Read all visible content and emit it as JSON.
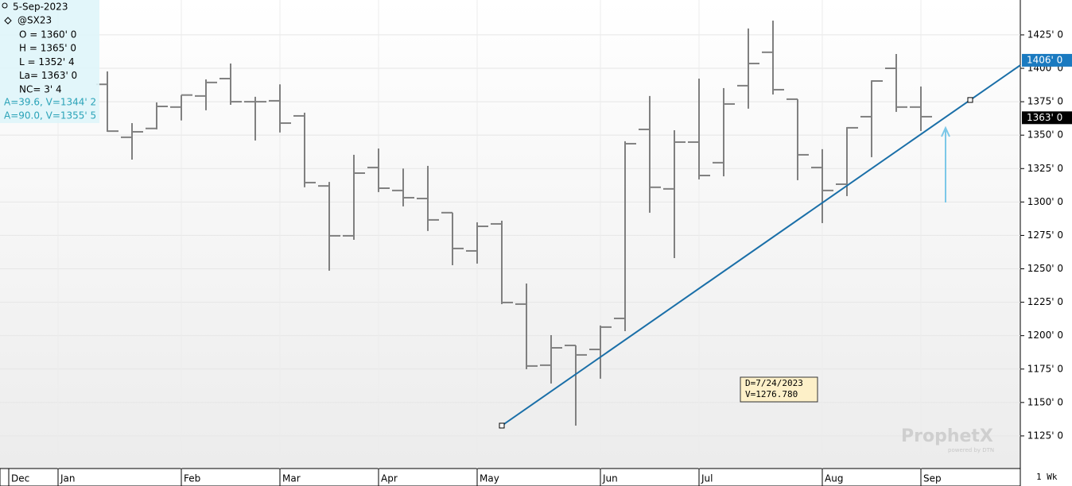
{
  "chart_data": {
    "type": "ohlc",
    "symbol": "@SX23",
    "date": "5-Sep-2023",
    "info": [
      "O = 1360' 0",
      "H = 1365' 0",
      "L = 1352' 4",
      "La= 1363' 0",
      "NC= 3' 4"
    ],
    "cursor_info": [
      "A=39.6, V=1344' 2",
      "A=90.0, V=1355' 5"
    ],
    "interval": "1 Wk",
    "watermark": "ProphetX",
    "watermark_sub": "powered by DTN",
    "categories": [
      "Dec",
      null,
      "Jan",
      null,
      null,
      null,
      null,
      "Feb",
      null,
      null,
      null,
      "Mar",
      null,
      null,
      null,
      "Apr",
      null,
      null,
      null,
      "May",
      null,
      null,
      null,
      null,
      "Jun",
      null,
      null,
      null,
      "Jul",
      null,
      null,
      null,
      null,
      "Aug",
      null,
      null,
      null,
      "Sep",
      null,
      null,
      null
    ],
    "series": [
      {
        "name": "open",
        "values": [
          null,
          null,
          null,
          null,
          1388,
          1348.4,
          1355,
          1371,
          1379.3,
          1392.3,
          1375,
          1375.7,
          1364.4,
          1312,
          1274.7,
          1325.8,
          1308.6,
          1302.6,
          1292,
          1263.4,
          1283.6,
          1223.6,
          1177.9,
          1192.7,
          1189.7,
          1212.9,
          1354.3,
          1309.8,
          1344.8,
          1329.4,
          1387,
          1412,
          1376.9,
          1325.8,
          1313.3,
          1363.8,
          1400,
          1371,
          null,
          null,
          null
        ]
      },
      {
        "name": "high",
        "values": [
          null,
          null,
          null,
          null,
          1397.7,
          1359,
          1374.5,
          1380,
          1391.7,
          1403.6,
          1378.7,
          1388,
          1366.8,
          1315,
          1335.3,
          1340,
          1325,
          1327,
          1292,
          1284.8,
          1286,
          1239,
          1200.4,
          1192.7,
          1207.6,
          1345.4,
          1379.3,
          1353.7,
          1392.3,
          1385.2,
          1429.8,
          1435.7,
          1376.9,
          1339.5,
          1356,
          1391,
          1410.7,
          1386.4,
          null,
          null,
          null
        ]
      },
      {
        "name": "low",
        "values": [
          null,
          null,
          null,
          null,
          1352.5,
          1331.7,
          1354.3,
          1361,
          1368.6,
          1372.7,
          1346,
          1352,
          1311,
          1248.6,
          1271.7,
          1307.4,
          1296.7,
          1278.3,
          1252.7,
          1253.9,
          1223.6,
          1174.9,
          1164.2,
          1132.7,
          1167.8,
          1203.4,
          1292,
          1258,
          1316.9,
          1319.2,
          1369.8,
          1380.4,
          1316.3,
          1284.2,
          1304.4,
          1333.5,
          1367.4,
          1353.1,
          null,
          null,
          null
        ]
      },
      {
        "name": "close",
        "values": [
          null,
          null,
          null,
          null,
          1353,
          1352.5,
          1371.5,
          1380,
          1389.4,
          1375,
          1375,
          1359,
          1314.5,
          1274.7,
          1321.6,
          1310.3,
          1303.2,
          1286.6,
          1265.2,
          1281.8,
          1224.8,
          1177.3,
          1190.9,
          1185.6,
          1206.4,
          1343.6,
          1311,
          1344.8,
          1319.8,
          1373.3,
          1403.6,
          1384,
          1335.3,
          1308.6,
          1355.5,
          1390.5,
          1371,
          1363.8,
          null,
          null,
          null
        ]
      }
    ],
    "color": "#808080",
    "ylim": [
      1100.6,
      1451.1
    ],
    "yticks": [
      {
        "value": 1125,
        "label": "1125' 0"
      },
      {
        "value": 1150,
        "label": "1150' 0"
      },
      {
        "value": 1175,
        "label": "1175' 0"
      },
      {
        "value": 1200,
        "label": "1200' 0"
      },
      {
        "value": 1225,
        "label": "1225' 0"
      },
      {
        "value": 1250,
        "label": "1250' 0"
      },
      {
        "value": 1275,
        "label": "1275' 0"
      },
      {
        "value": 1300,
        "label": "1300' 0"
      },
      {
        "value": 1325,
        "label": "1325' 0"
      },
      {
        "value": 1350,
        "label": "1350' 0"
      },
      {
        "value": 1375,
        "label": "1375' 0"
      },
      {
        "value": 1400,
        "label": "1400' 0"
      },
      {
        "value": 1425,
        "label": "1425' 0"
      }
    ],
    "grid": true,
    "trendline": {
      "start": {
        "index": 20,
        "value": 1132.7
      },
      "end": {
        "index": 39,
        "value": 1376.3
      },
      "color": "#1a6fa8"
    },
    "price_labels": [
      {
        "value": 1406,
        "label": "1406' 0",
        "color": "#1a7ac0"
      },
      {
        "value": 1363,
        "label": "1363' 0",
        "color": "#000000"
      }
    ],
    "annotation": [
      "D=7/24/2023",
      "V=1276.780"
    ]
  }
}
